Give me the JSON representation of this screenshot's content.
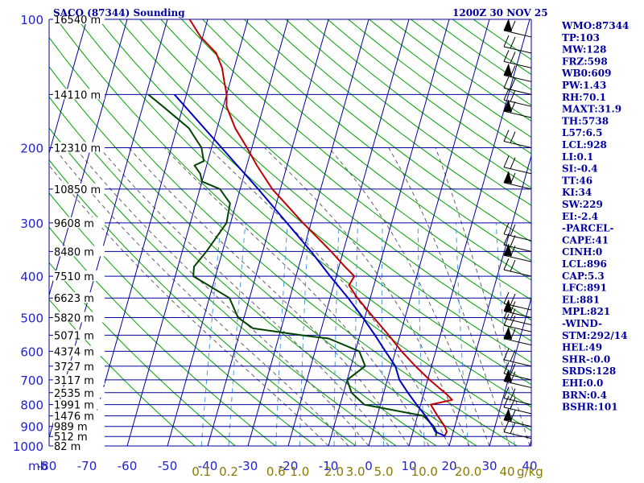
{
  "header": {
    "station_title": "SACO (87344) Sounding",
    "valid_time": "1200Z 30 NOV 25"
  },
  "chart_data": {
    "type": "line",
    "title": "SACO (87344) Sounding",
    "subtitle": "1200Z 30 NOV 25",
    "xlabel": "",
    "ylabel": "",
    "pressure_unit": "mb",
    "mixing_ratio_unit": "g/kg",
    "xlim": [
      -80,
      40
    ],
    "ylim": [
      1000,
      100
    ],
    "log_pressure_axis": true,
    "skew": "skew-T log-P",
    "pressure_ticks": [
      100,
      200,
      300,
      400,
      500,
      600,
      700,
      800,
      900,
      1000
    ],
    "temperature_ticks": [
      -80,
      -70,
      -60,
      -50,
      -40,
      -30,
      -20,
      -10,
      0,
      10,
      20,
      30,
      40
    ],
    "height_labels": [
      {
        "p": 100,
        "label": "16540 m"
      },
      {
        "p": 150,
        "label": "14110 m"
      },
      {
        "p": 200,
        "label": "12310 m"
      },
      {
        "p": 250,
        "label": "10850 m"
      },
      {
        "p": 300,
        "label": "9608 m"
      },
      {
        "p": 350,
        "label": "8480 m"
      },
      {
        "p": 400,
        "label": "7510 m"
      },
      {
        "p": 450,
        "label": "6623 m"
      },
      {
        "p": 500,
        "label": "5820 m"
      },
      {
        "p": 550,
        "label": "5071 m"
      },
      {
        "p": 600,
        "label": "4374 m"
      },
      {
        "p": 650,
        "label": "3727 m"
      },
      {
        "p": 700,
        "label": "3117 m"
      },
      {
        "p": 750,
        "label": "2535 m"
      },
      {
        "p": 800,
        "label": "1991 m"
      },
      {
        "p": 850,
        "label": "1476 m"
      },
      {
        "p": 900,
        "label": "989 m"
      },
      {
        "p": 950,
        "label": "512 m"
      },
      {
        "p": 1000,
        "label": "82 m"
      }
    ],
    "mixing_ratio_labels": [
      "0.1",
      "0.2",
      "0.6",
      "1.0",
      "2.0",
      "3.0",
      "5.0",
      "10.0",
      "20.0",
      "40"
    ],
    "mixing_ratio_values": [
      0.1,
      0.2,
      0.6,
      1.0,
      2.0,
      3.0,
      5.0,
      10.0,
      20.0,
      40.0
    ],
    "series": [
      {
        "key": "temperature",
        "color": "#c00000",
        "points": [
          [
            947,
            18.2
          ],
          [
            925,
            18.4
          ],
          [
            900,
            17.5
          ],
          [
            850,
            15.0
          ],
          [
            800,
            12.5
          ],
          [
            780,
            17.5
          ],
          [
            760,
            16.0
          ],
          [
            700,
            10.5
          ],
          [
            650,
            6.0
          ],
          [
            600,
            1.5
          ],
          [
            550,
            -2.8
          ],
          [
            500,
            -7.8
          ],
          [
            450,
            -13.2
          ],
          [
            420,
            -16.2
          ],
          [
            400,
            -15.5
          ],
          [
            380,
            -18.5
          ],
          [
            350,
            -23.0
          ],
          [
            300,
            -32.0
          ],
          [
            250,
            -42.0
          ],
          [
            220,
            -47.5
          ],
          [
            200,
            -51.2
          ],
          [
            180,
            -55.5
          ],
          [
            160,
            -59.2
          ],
          [
            150,
            -60.0
          ],
          [
            140,
            -61.5
          ],
          [
            130,
            -63.0
          ],
          [
            120,
            -65.5
          ],
          [
            110,
            -70.5
          ],
          [
            100,
            -74.5
          ]
        ]
      },
      {
        "key": "dewpoint",
        "color": "#004400",
        "points": [
          [
            947,
            16.0
          ],
          [
            925,
            15.8
          ],
          [
            900,
            14.8
          ],
          [
            850,
            11.5
          ],
          [
            800,
            -4.0
          ],
          [
            750,
            -8.0
          ],
          [
            700,
            -10.0
          ],
          [
            650,
            -6.5
          ],
          [
            600,
            -9.0
          ],
          [
            560,
            -17.5
          ],
          [
            550,
            -24.5
          ],
          [
            530,
            -37.0
          ],
          [
            500,
            -41.5
          ],
          [
            450,
            -45.0
          ],
          [
            400,
            -55.5
          ],
          [
            380,
            -56.0
          ],
          [
            350,
            -54.0
          ],
          [
            300,
            -51.0
          ],
          [
            270,
            -51.5
          ],
          [
            250,
            -55.0
          ],
          [
            240,
            -60.0
          ],
          [
            230,
            -61.0
          ],
          [
            220,
            -63.0
          ],
          [
            215,
            -61.0
          ],
          [
            200,
            -62.5
          ],
          [
            180,
            -67.0
          ],
          [
            160,
            -75.0
          ],
          [
            150,
            -79.5
          ]
        ]
      },
      {
        "key": "parcel",
        "color": "#0000c0",
        "points": [
          [
            947,
            18.2
          ],
          [
            925,
            15.5
          ],
          [
            900,
            14.5
          ],
          [
            850,
            12.0
          ],
          [
            800,
            9.0
          ],
          [
            750,
            6.0
          ],
          [
            700,
            3.0
          ],
          [
            650,
            1.0
          ],
          [
            600,
            -2.5
          ],
          [
            550,
            -6.2
          ],
          [
            500,
            -10.5
          ],
          [
            450,
            -15.5
          ],
          [
            400,
            -21.5
          ],
          [
            350,
            -28.0
          ],
          [
            300,
            -36.0
          ],
          [
            250,
            -45.5
          ],
          [
            200,
            -57.5
          ],
          [
            150,
            -73.0
          ]
        ]
      }
    ],
    "wind_barbs_pressure": [
      110,
      120,
      130,
      140,
      150,
      160,
      170,
      200,
      230,
      250,
      330,
      350,
      370,
      400,
      480,
      500,
      520,
      540,
      580,
      650,
      700,
      730,
      800,
      840,
      900,
      960
    ]
  },
  "indices": [
    "WMO:87344",
    "TP:103",
    "MW:128",
    "FRZ:598",
    "WB0:609",
    "PW:1.43",
    "RH:70.1",
    "MAXT:31.9",
    "TH:5738",
    "L57:6.5",
    "LCL:928",
    "LI:0.1",
    "SI:-0.4",
    "TT:46",
    "KI:34",
    "SW:229",
    "EI:-2.4",
    "-PARCEL-",
    "CAPE:41",
    "CINH:0",
    "LCL:896",
    "CAP:5.3",
    "LFC:891",
    "EL:881",
    "MPL:821",
    "-WIND-",
    "STM:292/14",
    "HEL:49",
    "SHR-:0.0",
    "SRDS:128",
    "EHI:0.0",
    "BRN:0.4",
    "BSHR:101"
  ],
  "colors": {
    "isobar": "#0000a0",
    "isotherm": "#0000a0",
    "dry_adiabat": "#00a000",
    "moist_adiabat": "#606060",
    "mixing_ratio": "#4a9ad8",
    "background": "#ffffff"
  }
}
